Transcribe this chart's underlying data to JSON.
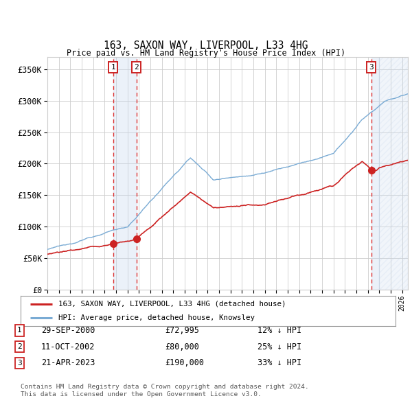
{
  "title": "163, SAXON WAY, LIVERPOOL, L33 4HG",
  "subtitle": "Price paid vs. HM Land Registry's House Price Index (HPI)",
  "ylim": [
    0,
    370000
  ],
  "yticks": [
    0,
    50000,
    100000,
    150000,
    200000,
    250000,
    300000,
    350000
  ],
  "ytick_labels": [
    "£0",
    "£50K",
    "£100K",
    "£150K",
    "£200K",
    "£250K",
    "£300K",
    "£350K"
  ],
  "xlim_start": 1995.0,
  "xlim_end": 2026.5,
  "hpi_color": "#7aabd4",
  "price_color": "#cc2222",
  "annotation_box_color": "#cc2222",
  "vline_color": "#dd3333",
  "shade_color": "#c8d8ee",
  "hatch_color": "#b0c4de",
  "legend_label_price": "163, SAXON WAY, LIVERPOOL, L33 4HG (detached house)",
  "legend_label_hpi": "HPI: Average price, detached house, Knowsley",
  "sales": [
    {
      "id": 1,
      "date_num": 2000.75,
      "price": 72995,
      "label": "1",
      "pct": "12%",
      "date_str": "29-SEP-2000",
      "price_str": "£72,995"
    },
    {
      "id": 2,
      "date_num": 2002.78,
      "price": 80000,
      "label": "2",
      "pct": "25%",
      "date_str": "11-OCT-2002",
      "price_str": "£80,000"
    },
    {
      "id": 3,
      "date_num": 2023.3,
      "price": 190000,
      "label": "3",
      "pct": "33%",
      "date_str": "21-APR-2023",
      "price_str": "£190,000"
    }
  ],
  "hatch_start": 2024.0,
  "footnote": "Contains HM Land Registry data © Crown copyright and database right 2024.\nThis data is licensed under the Open Government Licence v3.0.",
  "background_color": "#ffffff",
  "grid_color": "#cccccc"
}
